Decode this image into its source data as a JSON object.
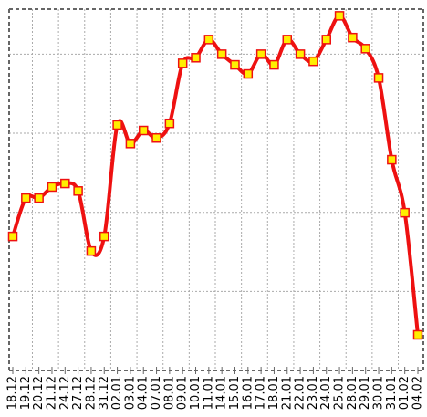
{
  "chart_data": {
    "type": "line",
    "categories": [
      "18.12",
      "19.12",
      "20.12",
      "21.12",
      "24.12",
      "27.12",
      "28.12",
      "31.12",
      "02.01",
      "03.01",
      "04.01",
      "07.01",
      "08.01",
      "09.01",
      "10.01",
      "11.01",
      "14.01",
      "15.01",
      "16.01",
      "17.01",
      "18.01",
      "21.01",
      "22.01",
      "23.01",
      "24.01",
      "25.01",
      "28.01",
      "29.01",
      "30.01",
      "31.01",
      "01.02",
      "04.02"
    ],
    "values": [
      33.9,
      43.6,
      43.6,
      46.4,
      47.3,
      45.4,
      30.2,
      33.9,
      62.1,
      57.4,
      60.7,
      58.8,
      62.5,
      77.7,
      79.1,
      83.7,
      80.0,
      77.3,
      75.0,
      80.0,
      77.3,
      83.7,
      80.0,
      78.2,
      83.7,
      89.7,
      84.2,
      81.4,
      74.0,
      53.3,
      39.9,
      9.0
    ],
    "color": "#ee1111",
    "marker_color": "#ffee00",
    "ylim": [
      0,
      91.4
    ],
    "yticks": [
      20,
      40,
      60,
      80
    ],
    "grid": true
  }
}
